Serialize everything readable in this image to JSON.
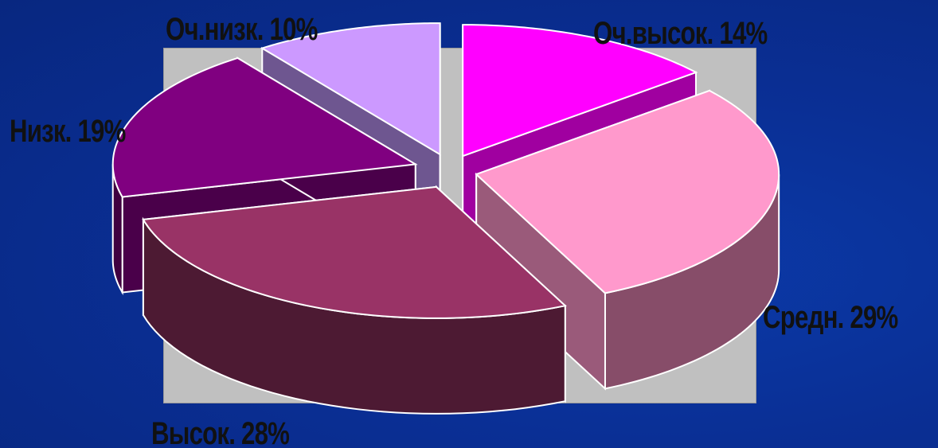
{
  "chart_data": {
    "type": "pie",
    "style": "3d-exploded",
    "slices": [
      {
        "label": "Оч.высок. 14%",
        "value": 14,
        "color": "#ff00ff",
        "side_color": "#8f008f",
        "shade_color": "#a000a0"
      },
      {
        "label": "Средн. 29%",
        "value": 29,
        "color": "#ff99cc",
        "side_color": "#874d69",
        "shade_color": "#9a5a7a"
      },
      {
        "label": "Высок. 28%",
        "value": 28,
        "color": "#993366",
        "side_color": "#4d1a33",
        "shade_color": "#5a1f3c"
      },
      {
        "label": "Низк. 19%",
        "value": 19,
        "color": "#800080",
        "side_color": "#400040",
        "shade_color": "#4a004a"
      },
      {
        "label": "Оч.низк. 10%",
        "value": 10,
        "color": "#cc99ff",
        "side_color": "#66508a",
        "shade_color": "#6e5690"
      }
    ],
    "plot_background": "#c0c0c0",
    "slice_edge_color": "#ffffff",
    "label_color": "#111111",
    "page_background": "#0a2f95"
  }
}
